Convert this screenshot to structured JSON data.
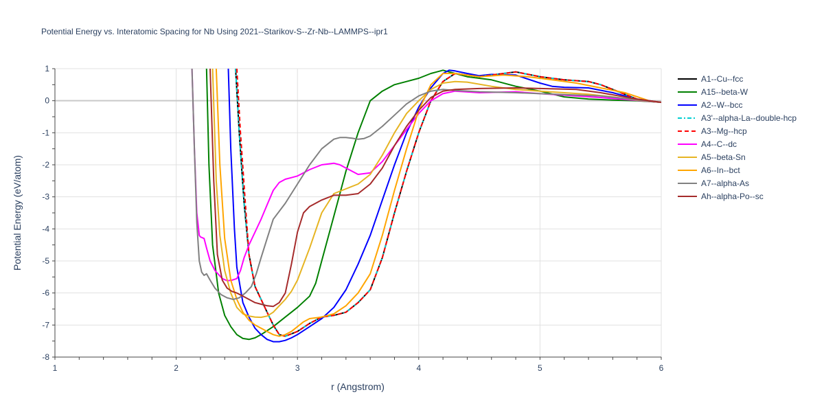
{
  "chart_data": {
    "type": "line",
    "title": "Potential Energy vs. Interatomic Spacing for Nb Using 2021--Starikov-S--Zr-Nb--LAMMPS--ipr1",
    "xlabel": "r (Angstrom)",
    "ylabel": "Potential Energy (eV/atom)",
    "xlim": [
      1,
      6
    ],
    "ylim": [
      -8,
      1
    ],
    "xticks": [
      1,
      2,
      3,
      4,
      5,
      6
    ],
    "yticks": [
      -8,
      -7,
      -6,
      -5,
      -4,
      -3,
      -2,
      -1,
      0,
      1
    ],
    "grid": true,
    "legend_position": "right",
    "series": [
      {
        "name": "A1--Cu--fcc",
        "color": "#000000",
        "dash": "solid",
        "x": [
          2.49,
          2.52,
          2.56,
          2.6,
          2.65,
          2.7,
          2.75,
          2.8,
          2.85,
          2.9,
          3.0,
          3.1,
          3.2,
          3.3,
          3.4,
          3.5,
          3.6,
          3.7,
          3.8,
          3.9,
          4.0,
          4.1,
          4.2,
          4.3,
          4.4,
          4.5,
          4.6,
          4.8,
          5.0,
          5.2,
          5.4,
          5.5,
          5.6,
          5.7,
          5.8,
          5.9,
          6.0
        ],
        "y": [
          1.0,
          -1.0,
          -3.2,
          -4.8,
          -5.8,
          -6.2,
          -6.6,
          -7.0,
          -7.3,
          -7.35,
          -7.2,
          -6.95,
          -6.75,
          -6.7,
          -6.6,
          -6.3,
          -5.9,
          -4.9,
          -3.5,
          -2.2,
          -1.0,
          0.0,
          0.6,
          0.85,
          0.8,
          0.75,
          0.8,
          0.9,
          0.75,
          0.65,
          0.6,
          0.5,
          0.35,
          0.2,
          0.05,
          -0.02,
          -0.05
        ]
      },
      {
        "name": "A15--beta-W",
        "color": "#008000",
        "dash": "solid",
        "x": [
          2.25,
          2.27,
          2.3,
          2.35,
          2.4,
          2.45,
          2.5,
          2.55,
          2.6,
          2.65,
          2.7,
          2.8,
          2.9,
          3.0,
          3.1,
          3.15,
          3.2,
          3.3,
          3.4,
          3.5,
          3.6,
          3.7,
          3.8,
          3.9,
          4.0,
          4.1,
          4.2,
          4.3,
          4.4,
          4.6,
          4.8,
          5.0,
          5.2,
          5.4,
          5.6,
          5.8,
          6.0
        ],
        "y": [
          1.0,
          -2.0,
          -4.5,
          -6.0,
          -6.7,
          -7.05,
          -7.3,
          -7.42,
          -7.45,
          -7.4,
          -7.3,
          -7.05,
          -6.75,
          -6.45,
          -6.1,
          -5.7,
          -5.0,
          -3.6,
          -2.2,
          -1.0,
          0.0,
          0.3,
          0.5,
          0.6,
          0.7,
          0.85,
          0.95,
          0.85,
          0.75,
          0.65,
          0.45,
          0.3,
          0.12,
          0.05,
          0.02,
          0.0,
          -0.05
        ]
      },
      {
        "name": "A2--W--bcc",
        "color": "#0000ff",
        "dash": "solid",
        "x": [
          2.43,
          2.45,
          2.48,
          2.5,
          2.55,
          2.6,
          2.65,
          2.7,
          2.75,
          2.8,
          2.85,
          2.9,
          2.95,
          3.0,
          3.1,
          3.2,
          3.3,
          3.4,
          3.5,
          3.6,
          3.7,
          3.8,
          3.9,
          4.0,
          4.1,
          4.2,
          4.25,
          4.3,
          4.4,
          4.5,
          4.6,
          4.8,
          5.0,
          5.1,
          5.2,
          5.4,
          5.6,
          5.8,
          6.0
        ],
        "y": [
          1.0,
          -1.5,
          -4.0,
          -5.2,
          -6.3,
          -6.75,
          -7.1,
          -7.3,
          -7.45,
          -7.52,
          -7.52,
          -7.48,
          -7.4,
          -7.3,
          -7.05,
          -6.8,
          -6.45,
          -5.9,
          -5.1,
          -4.2,
          -3.1,
          -2.0,
          -1.0,
          -0.2,
          0.4,
          0.85,
          0.95,
          0.93,
          0.85,
          0.78,
          0.82,
          0.8,
          0.55,
          0.45,
          0.42,
          0.4,
          0.25,
          0.05,
          -0.05
        ]
      },
      {
        "name": "A3'--alpha-La--double-hcp",
        "color": "#00ced1",
        "dash": "dashdot",
        "x": [
          2.49,
          2.52,
          2.56,
          2.6,
          2.65,
          2.7,
          2.75,
          2.8,
          2.85,
          2.9,
          3.0,
          3.1,
          3.2,
          3.3,
          3.4,
          3.5,
          3.6,
          3.7,
          3.8,
          3.9,
          4.0,
          4.1,
          4.2,
          4.3,
          4.4,
          4.5,
          4.6,
          4.8,
          5.0,
          5.2,
          5.4,
          5.5,
          5.6,
          5.7,
          5.8,
          5.9,
          6.0
        ],
        "y": [
          1.0,
          -1.0,
          -3.2,
          -4.8,
          -5.8,
          -6.2,
          -6.6,
          -7.0,
          -7.3,
          -7.35,
          -7.2,
          -6.95,
          -6.75,
          -6.7,
          -6.6,
          -6.3,
          -5.9,
          -4.9,
          -3.5,
          -2.2,
          -1.0,
          0.0,
          0.6,
          0.85,
          0.8,
          0.75,
          0.8,
          0.9,
          0.75,
          0.65,
          0.6,
          0.5,
          0.35,
          0.2,
          0.05,
          -0.02,
          -0.05
        ]
      },
      {
        "name": "A3--Mg--hcp",
        "color": "#ff0000",
        "dash": "dash",
        "x": [
          2.5,
          2.53,
          2.57,
          2.6,
          2.65,
          2.7,
          2.75,
          2.8,
          2.85,
          2.9,
          3.0,
          3.1,
          3.2,
          3.3,
          3.4,
          3.5,
          3.6,
          3.7,
          3.8,
          3.9,
          4.0,
          4.1,
          4.2,
          4.3,
          4.4,
          4.5,
          4.6,
          4.8,
          5.0,
          5.2,
          5.4,
          5.5,
          5.6,
          5.7,
          5.8,
          5.9,
          6.0
        ],
        "y": [
          1.0,
          -1.0,
          -3.2,
          -4.8,
          -5.8,
          -6.2,
          -6.6,
          -7.0,
          -7.3,
          -7.35,
          -7.2,
          -6.95,
          -6.75,
          -6.7,
          -6.6,
          -6.3,
          -5.9,
          -4.9,
          -3.5,
          -2.2,
          -1.0,
          0.0,
          0.6,
          0.85,
          0.8,
          0.75,
          0.8,
          0.9,
          0.75,
          0.65,
          0.6,
          0.5,
          0.35,
          0.2,
          0.05,
          -0.02,
          -0.05
        ]
      },
      {
        "name": "A4--C--dc",
        "color": "#ff00ff",
        "dash": "solid",
        "x": [
          2.13,
          2.15,
          2.17,
          2.19,
          2.2,
          2.23,
          2.25,
          2.28,
          2.32,
          2.38,
          2.42,
          2.46,
          2.5,
          2.53,
          2.56,
          2.6,
          2.65,
          2.7,
          2.75,
          2.8,
          2.85,
          2.9,
          2.95,
          3.0,
          3.05,
          3.1,
          3.2,
          3.3,
          3.35,
          3.4,
          3.5,
          3.6,
          3.7,
          3.8,
          3.9,
          4.0,
          4.1,
          4.2,
          4.3,
          4.5,
          4.8,
          5.0,
          5.5,
          6.0
        ],
        "y": [
          1.0,
          -1.5,
          -3.5,
          -4.2,
          -4.25,
          -4.3,
          -4.6,
          -5.0,
          -5.3,
          -5.55,
          -5.62,
          -5.6,
          -5.55,
          -5.3,
          -4.9,
          -4.5,
          -4.1,
          -3.7,
          -3.25,
          -2.8,
          -2.55,
          -2.45,
          -2.4,
          -2.35,
          -2.25,
          -2.15,
          -2.0,
          -1.95,
          -2.0,
          -2.1,
          -2.3,
          -2.25,
          -1.9,
          -1.4,
          -0.9,
          -0.4,
          0.0,
          0.22,
          0.3,
          0.25,
          0.28,
          0.22,
          0.1,
          -0.05
        ]
      },
      {
        "name": "A5--beta-Sn",
        "color": "#e6b422",
        "dash": "solid",
        "x": [
          2.3,
          2.33,
          2.36,
          2.4,
          2.45,
          2.5,
          2.55,
          2.6,
          2.65,
          2.7,
          2.75,
          2.8,
          2.85,
          2.9,
          2.95,
          3.0,
          3.1,
          3.2,
          3.3,
          3.4,
          3.5,
          3.6,
          3.7,
          3.8,
          3.9,
          4.0,
          4.1,
          4.2,
          4.3,
          4.4,
          4.6,
          4.8,
          5.0,
          5.2,
          5.4,
          5.6,
          5.8,
          6.0
        ],
        "y": [
          1.0,
          -2.5,
          -4.2,
          -5.3,
          -6.0,
          -6.45,
          -6.65,
          -6.72,
          -6.75,
          -6.76,
          -6.72,
          -6.6,
          -6.4,
          -6.2,
          -5.95,
          -5.6,
          -4.6,
          -3.5,
          -2.9,
          -2.75,
          -2.6,
          -2.3,
          -1.7,
          -1.0,
          -0.4,
          0.0,
          0.35,
          0.55,
          0.6,
          0.58,
          0.45,
          0.35,
          0.3,
          0.25,
          0.2,
          0.12,
          0.02,
          -0.05
        ]
      },
      {
        "name": "A6--In--bct",
        "color": "#ffa500",
        "dash": "solid",
        "x": [
          2.33,
          2.36,
          2.4,
          2.45,
          2.5,
          2.55,
          2.6,
          2.65,
          2.7,
          2.75,
          2.8,
          2.85,
          2.9,
          2.95,
          3.0,
          3.05,
          3.1,
          3.2,
          3.3,
          3.4,
          3.5,
          3.6,
          3.7,
          3.8,
          3.9,
          4.0,
          4.1,
          4.2,
          4.3,
          4.5,
          4.7,
          4.9,
          5.1,
          5.3,
          5.5,
          5.7,
          5.9,
          6.0
        ],
        "y": [
          1.0,
          -2.0,
          -4.3,
          -5.6,
          -6.2,
          -6.6,
          -6.85,
          -7.0,
          -7.1,
          -7.2,
          -7.3,
          -7.35,
          -7.3,
          -7.2,
          -7.05,
          -6.9,
          -6.8,
          -6.75,
          -6.65,
          -6.4,
          -6.0,
          -5.4,
          -4.2,
          -2.8,
          -1.5,
          -0.3,
          0.5,
          0.85,
          0.85,
          0.75,
          0.8,
          0.75,
          0.65,
          0.55,
          0.4,
          0.25,
          0.0,
          -0.05
        ]
      },
      {
        "name": "A7--alpha-As",
        "color": "#808080",
        "dash": "solid",
        "x": [
          2.13,
          2.15,
          2.17,
          2.19,
          2.21,
          2.23,
          2.25,
          2.28,
          2.32,
          2.37,
          2.42,
          2.47,
          2.52,
          2.57,
          2.62,
          2.66,
          2.7,
          2.75,
          2.8,
          2.9,
          3.0,
          3.1,
          3.2,
          3.3,
          3.35,
          3.4,
          3.45,
          3.5,
          3.55,
          3.6,
          3.7,
          3.8,
          3.9,
          4.0,
          4.1,
          4.2,
          4.3,
          4.5,
          4.8,
          5.0,
          5.5,
          6.0
        ],
        "y": [
          1.0,
          -1.5,
          -3.8,
          -5.0,
          -5.35,
          -5.45,
          -5.4,
          -5.6,
          -5.85,
          -6.05,
          -6.15,
          -6.2,
          -6.15,
          -6.0,
          -5.8,
          -5.4,
          -4.9,
          -4.3,
          -3.7,
          -3.2,
          -2.6,
          -2.0,
          -1.5,
          -1.2,
          -1.15,
          -1.15,
          -1.17,
          -1.2,
          -1.18,
          -1.1,
          -0.8,
          -0.45,
          -0.1,
          0.15,
          0.3,
          0.35,
          0.32,
          0.28,
          0.25,
          0.22,
          0.15,
          -0.05
        ]
      },
      {
        "name": "Ah--alpha-Po--sc",
        "color": "#a52a2a",
        "dash": "solid",
        "x": [
          2.28,
          2.31,
          2.34,
          2.38,
          2.42,
          2.46,
          2.5,
          2.55,
          2.6,
          2.65,
          2.7,
          2.75,
          2.8,
          2.85,
          2.9,
          2.95,
          3.0,
          3.05,
          3.1,
          3.2,
          3.3,
          3.4,
          3.5,
          3.6,
          3.7,
          3.8,
          3.9,
          4.0,
          4.1,
          4.2,
          4.3,
          4.5,
          4.8,
          5.0,
          5.3,
          5.5,
          5.8,
          6.0
        ],
        "y": [
          1.0,
          -2.5,
          -4.8,
          -5.6,
          -5.85,
          -5.95,
          -6.0,
          -6.1,
          -6.2,
          -6.3,
          -6.35,
          -6.4,
          -6.42,
          -6.3,
          -6.0,
          -5.1,
          -4.1,
          -3.5,
          -3.3,
          -3.1,
          -2.95,
          -2.95,
          -2.9,
          -2.6,
          -2.1,
          -1.4,
          -0.8,
          -0.3,
          0.1,
          0.3,
          0.35,
          0.38,
          0.4,
          0.38,
          0.35,
          0.25,
          0.05,
          -0.05
        ]
      }
    ]
  }
}
